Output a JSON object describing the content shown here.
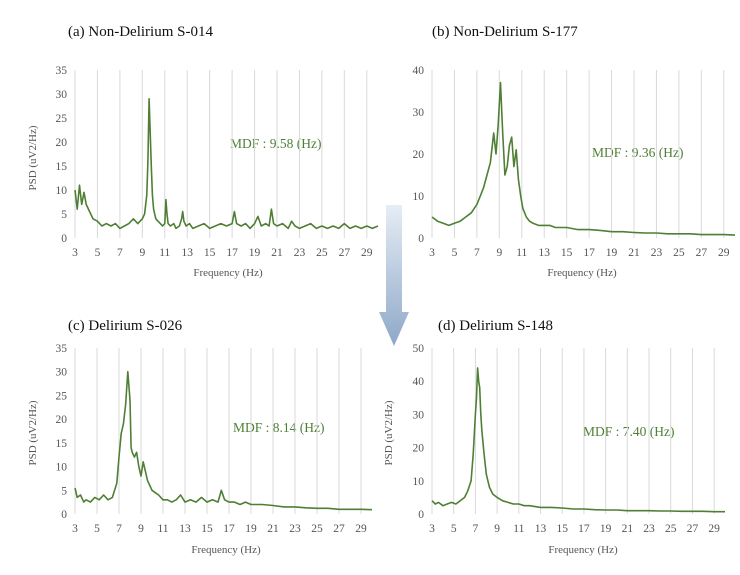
{
  "colors": {
    "series": "#4f7f35",
    "annotation": "#4f7f35",
    "arrow_top": "#e6edf5",
    "arrow_bottom": "#8ea8c8"
  },
  "arrow": {
    "name": "down-arrow",
    "direction": "down"
  },
  "chart_data": [
    {
      "type": "line",
      "title": "(a) Non-Delirium S-014",
      "xlabel": "Frequency (Hz)",
      "ylabel": "PSD (uV2/Hz)",
      "annotation": "MDF : 9.58 (Hz)",
      "xlim": [
        3,
        30
      ],
      "ylim": [
        0,
        35
      ],
      "xticks": [
        "3",
        "5",
        "7",
        "9",
        "11",
        "13",
        "15",
        "17",
        "19",
        "21",
        "23",
        "25",
        "27",
        "29"
      ],
      "yticks": [
        "0",
        "5",
        "10",
        "15",
        "20",
        "25",
        "30",
        "35"
      ],
      "series": [
        {
          "name": "S-014",
          "x": [
            3,
            3.2,
            3.4,
            3.6,
            3.8,
            4,
            4.3,
            4.6,
            5,
            5.4,
            5.8,
            6.2,
            6.6,
            7,
            7.4,
            7.8,
            8.2,
            8.6,
            9,
            9.2,
            9.4,
            9.5,
            9.6,
            9.7,
            9.8,
            9.9,
            10,
            10.2,
            10.4,
            10.6,
            10.8,
            11,
            11.1,
            11.2,
            11.3,
            11.5,
            11.8,
            12,
            12.3,
            12.5,
            12.6,
            12.7,
            12.9,
            13.2,
            13.5,
            14,
            14.5,
            15,
            15.5,
            16,
            16.5,
            17,
            17.2,
            17.4,
            17.8,
            18.2,
            18.6,
            19,
            19.3,
            19.6,
            20,
            20.3,
            20.5,
            20.7,
            21,
            21.5,
            22,
            22.3,
            22.6,
            23,
            23.5,
            24,
            24.5,
            25,
            25.5,
            26,
            26.5,
            27,
            27.5,
            28,
            28.5,
            29,
            29.5,
            30
          ],
          "y": [
            10,
            6,
            11,
            7,
            9.5,
            7,
            5.5,
            4,
            3.5,
            2.5,
            3,
            2.5,
            3,
            2,
            2.5,
            3,
            4,
            3,
            4,
            5,
            9,
            16,
            29,
            22,
            15,
            9,
            6,
            4,
            3.5,
            3,
            2.5,
            3,
            8,
            5,
            3,
            2.5,
            3,
            2,
            2.5,
            4,
            5.5,
            3.5,
            2.5,
            3,
            2,
            2.5,
            3,
            2,
            2.5,
            3,
            2.5,
            3,
            5.5,
            3,
            2.5,
            3,
            2,
            3,
            4.5,
            2.5,
            3,
            2.5,
            6,
            3,
            2.5,
            3,
            2,
            3.5,
            2.5,
            2,
            2.5,
            3,
            2,
            2.5,
            2,
            2.5,
            2,
            3,
            2,
            2.5,
            2,
            2.5,
            2,
            2.5
          ]
        }
      ]
    },
    {
      "type": "line",
      "title": "(b) Non-Delirium S-177",
      "xlabel": "Frequency (Hz)",
      "ylabel": "",
      "annotation": "MDF : 9.36 (Hz)",
      "xlim": [
        3,
        30
      ],
      "ylim": [
        0,
        40
      ],
      "xticks": [
        "3",
        "5",
        "7",
        "9",
        "11",
        "13",
        "15",
        "17",
        "19",
        "21",
        "23",
        "25",
        "27",
        "29"
      ],
      "yticks": [
        "0",
        "10",
        "20",
        "30",
        "40"
      ],
      "series": [
        {
          "name": "S-177",
          "x": [
            3,
            3.5,
            4,
            4.5,
            5,
            5.5,
            6,
            6.5,
            7,
            7.3,
            7.6,
            7.9,
            8.2,
            8.5,
            8.7,
            8.9,
            9.1,
            9.3,
            9.5,
            9.7,
            9.9,
            10.1,
            10.3,
            10.5,
            10.7,
            10.9,
            11.1,
            11.4,
            11.7,
            12,
            12.5,
            13,
            13.5,
            14,
            15,
            16,
            17,
            18,
            19,
            20,
            21,
            22,
            23,
            24,
            25,
            26,
            27,
            28,
            29,
            30
          ],
          "y": [
            5,
            4,
            3.5,
            3,
            3.5,
            4,
            5,
            6,
            8,
            10,
            12,
            15,
            18,
            25,
            20,
            27,
            37,
            25,
            15,
            17,
            22,
            24,
            17,
            21,
            14,
            10,
            7,
            5,
            4,
            3.5,
            3,
            3,
            3,
            2.5,
            2.5,
            2,
            2,
            1.8,
            1.5,
            1.5,
            1.3,
            1.2,
            1.2,
            1,
            1,
            1,
            0.8,
            0.8,
            0.8,
            0.7
          ]
        }
      ]
    },
    {
      "type": "line",
      "title": "(c) Delirium S-026",
      "xlabel": "Frequency (Hz)",
      "ylabel": "PSD (uV2/Hz)",
      "annotation": "MDF : 8.14 (Hz)",
      "xlim": [
        3,
        30
      ],
      "ylim": [
        0,
        35
      ],
      "xticks": [
        "3",
        "5",
        "7",
        "9",
        "11",
        "13",
        "15",
        "17",
        "19",
        "21",
        "23",
        "25",
        "27",
        "29"
      ],
      "yticks": [
        "0",
        "5",
        "10",
        "15",
        "20",
        "25",
        "30",
        "35"
      ],
      "series": [
        {
          "name": "S-026",
          "x": [
            3,
            3.2,
            3.5,
            3.8,
            4,
            4.4,
            4.8,
            5.2,
            5.6,
            6,
            6.4,
            6.8,
            7,
            7.2,
            7.4,
            7.6,
            7.8,
            7.9,
            8,
            8.1,
            8.2,
            8.4,
            8.6,
            8.8,
            9,
            9.2,
            9.4,
            9.6,
            9.8,
            10,
            10.3,
            10.6,
            11,
            11.4,
            11.8,
            12.2,
            12.6,
            13,
            13.5,
            14,
            14.5,
            15,
            15.5,
            16,
            16.3,
            16.6,
            17,
            17.5,
            18,
            18.5,
            19,
            19.5,
            20,
            21,
            22,
            23,
            24,
            25,
            26,
            27,
            28,
            29,
            30
          ],
          "y": [
            5.5,
            3.5,
            4,
            2.5,
            3,
            2.5,
            3.5,
            3,
            4,
            3,
            3.5,
            6.5,
            12,
            17,
            19,
            23,
            30,
            27,
            24,
            14,
            13,
            12,
            13,
            10,
            8,
            11,
            9,
            7,
            6,
            5,
            4.5,
            4,
            3,
            3,
            2.5,
            3,
            4,
            2.5,
            3,
            2.5,
            3.5,
            2.5,
            3,
            2.5,
            5,
            3,
            2.5,
            2.5,
            2,
            2.5,
            2,
            2,
            2,
            1.8,
            1.5,
            1.5,
            1.3,
            1.2,
            1.2,
            1,
            1,
            1,
            0.9
          ]
        }
      ]
    },
    {
      "type": "line",
      "title": "(d) Delirium S-148",
      "xlabel": "Frequency (Hz)",
      "ylabel": "PSD (uV2/Hz)",
      "annotation": "MDF : 7.40 (Hz)",
      "xlim": [
        3,
        30
      ],
      "ylim": [
        0,
        50
      ],
      "xticks": [
        "3",
        "5",
        "7",
        "9",
        "11",
        "13",
        "15",
        "17",
        "19",
        "21",
        "23",
        "25",
        "27",
        "29"
      ],
      "yticks": [
        "0",
        "10",
        "20",
        "30",
        "40",
        "50"
      ],
      "series": [
        {
          "name": "S-148",
          "x": [
            3,
            3.3,
            3.6,
            4,
            4.4,
            4.8,
            5.2,
            5.6,
            6,
            6.3,
            6.6,
            6.8,
            7,
            7.1,
            7.2,
            7.3,
            7.4,
            7.5,
            7.6,
            7.8,
            8,
            8.3,
            8.6,
            9,
            9.5,
            10,
            10.5,
            11,
            11.5,
            12,
            13,
            14,
            15,
            16,
            17,
            18,
            19,
            20,
            21,
            22,
            23,
            24,
            25,
            26,
            27,
            28,
            29,
            30
          ],
          "y": [
            4,
            3,
            3.5,
            2.5,
            3,
            3.5,
            3,
            4,
            5,
            7,
            10,
            18,
            30,
            35,
            44,
            40,
            38,
            30,
            25,
            18,
            12,
            8,
            6,
            5,
            4,
            3.5,
            3,
            3,
            2.5,
            2.5,
            2,
            2,
            1.8,
            1.5,
            1.5,
            1.3,
            1.2,
            1.2,
            1,
            1,
            1,
            0.9,
            0.9,
            0.8,
            0.8,
            0.8,
            0.7,
            0.7
          ]
        }
      ]
    }
  ]
}
